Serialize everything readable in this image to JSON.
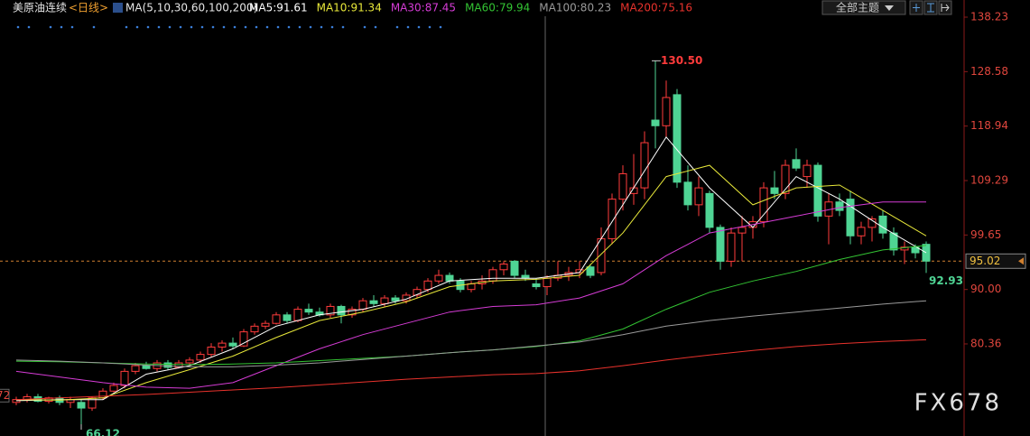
{
  "chart_data": {
    "type": "candlestick",
    "title": "美原油连续",
    "period": "<日线>",
    "indicator": "MA(5,10,30,60,100,200)",
    "theme_button": "全部主题",
    "watermark": "FX678",
    "ylim": [
      64.05,
      141.27
    ],
    "yticks": [
      138.23,
      128.58,
      118.94,
      109.29,
      99.65,
      {
        "value": 90,
        "label": "90.00"
      },
      80.36
    ],
    "up_color": "#ff3b3b",
    "down_color": "#4fd494",
    "open": [
      70,
      70.5,
      71,
      70.2,
      70.8,
      70,
      70,
      69,
      70.8,
      72,
      73,
      75.5,
      76.5,
      76,
      77,
      76.2,
      77,
      77.5,
      78.5,
      79.8,
      80.5,
      80,
      82.5,
      83.5,
      84,
      85.5,
      84.5,
      86.5,
      86,
      85.5,
      87,
      85.5,
      86.5,
      88,
      87.5,
      88.5,
      88,
      89,
      90,
      91.5,
      92.5,
      91.5,
      90,
      91,
      91.5,
      93.5,
      95,
      92.5,
      91,
      90.5,
      92,
      92.5,
      93,
      94,
      93,
      99,
      106,
      107,
      108,
      120,
      119,
      124.5,
      109,
      105,
      107,
      101,
      95,
      100,
      101,
      102,
      108,
      107,
      113,
      110,
      112,
      103,
      105.5,
      106,
      99.5,
      101,
      103,
      100,
      97,
      97.5,
      98
    ],
    "high": [
      71,
      71.5,
      71.5,
      71,
      71.2,
      71,
      70.5,
      71,
      72.5,
      73.5,
      76,
      77,
      77.2,
      77.5,
      77.5,
      77.5,
      78,
      79,
      80.5,
      81,
      81.5,
      83,
      84,
      84.5,
      86,
      86,
      87,
      87.5,
      86.8,
      87.5,
      87.3,
      87,
      88.5,
      89,
      89,
      89,
      89.5,
      90.5,
      92,
      93.5,
      93,
      92,
      91.5,
      92.5,
      94,
      95,
      95.2,
      93.5,
      92,
      92.5,
      95,
      94,
      95,
      94.5,
      101,
      107,
      112,
      114,
      118,
      130.5,
      127,
      125.5,
      112,
      110,
      107.5,
      101.5,
      101,
      103,
      103,
      109,
      111,
      113,
      115,
      113,
      112.5,
      107,
      107,
      107.5,
      102,
      103,
      104,
      101,
      98.5,
      98,
      98.5
    ],
    "low": [
      69.5,
      70,
      70,
      69.8,
      69.5,
      69,
      66.12,
      68.5,
      70.5,
      71.8,
      72.5,
      75,
      75.8,
      75.5,
      75.8,
      76,
      76.5,
      77,
      78,
      79,
      79.5,
      79.8,
      82,
      83,
      83.8,
      84,
      84.2,
      85.5,
      85.2,
      85,
      84,
      85,
      86,
      87,
      87,
      87.5,
      87.5,
      88.5,
      89.5,
      91,
      91,
      89.5,
      89.5,
      90,
      91,
      92.5,
      92,
      91.5,
      90,
      89,
      91.5,
      91.5,
      92,
      92,
      92.5,
      98,
      104,
      105,
      106,
      115,
      117,
      108,
      104,
      103,
      100,
      93.5,
      94,
      95,
      99,
      101,
      106,
      106,
      111,
      108,
      102,
      98,
      103,
      98,
      98,
      98.5,
      99,
      96,
      94.5,
      95.5,
      92.93
    ],
    "close": [
      70.5,
      71,
      70.2,
      70.8,
      70,
      70.5,
      69,
      70.8,
      72,
      73,
      75.5,
      76.5,
      76,
      77,
      76.2,
      77,
      77.5,
      78.5,
      79.8,
      80.5,
      80,
      82.5,
      83.5,
      84,
      85.5,
      84.5,
      86.5,
      86,
      85.5,
      87,
      85.5,
      86.5,
      88,
      87.5,
      88.5,
      88,
      89,
      90,
      91.5,
      92.5,
      91.5,
      90,
      91,
      91.5,
      93.5,
      94.5,
      92.5,
      92,
      90.5,
      92,
      92.5,
      93,
      93.5,
      92.5,
      99,
      106,
      110.5,
      108,
      116,
      119,
      124,
      109,
      105,
      108,
      101,
      95,
      100,
      101,
      102,
      108,
      107,
      112,
      111.5,
      112,
      103,
      105.5,
      104,
      99.5,
      101,
      102.5,
      100,
      97,
      97.5,
      96.5,
      95.02
    ],
    "series": [
      {
        "name": "MA5:91.61",
        "color": "#ffffff",
        "x": [
          0,
          4,
          8,
          12,
          16,
          20,
          24,
          28,
          32,
          36,
          40,
          44,
          48,
          52,
          56,
          60,
          64,
          68,
          72,
          76,
          80,
          84
        ],
        "values": [
          70.3,
          70.5,
          70.5,
          75,
          76.5,
          79.5,
          83.5,
          85.5,
          86.5,
          88.3,
          91.5,
          92,
          92,
          93,
          105,
          117,
          108,
          101,
          110,
          106,
          101,
          96.5
        ]
      },
      {
        "name": "MA10:91.34",
        "color": "#e8e83a",
        "x": [
          0,
          4,
          8,
          12,
          16,
          20,
          24,
          28,
          32,
          36,
          40,
          44,
          48,
          52,
          56,
          60,
          64,
          68,
          72,
          76,
          80,
          84
        ],
        "values": [
          70.5,
          70.4,
          70.8,
          73.5,
          75.8,
          78.2,
          81.5,
          84.5,
          86,
          87.8,
          90.5,
          91.5,
          91.8,
          92.5,
          100,
          110,
          112,
          105,
          108,
          108.5,
          104,
          99.5
        ]
      },
      {
        "name": "MA30:87.45",
        "color": "#d63cd6",
        "x": [
          0,
          4,
          8,
          12,
          16,
          20,
          24,
          28,
          32,
          36,
          40,
          44,
          48,
          52,
          56,
          60,
          64,
          68,
          72,
          76,
          80,
          84
        ],
        "values": [
          75.5,
          74.5,
          73.5,
          72.7,
          72.5,
          73.5,
          76.5,
          79.5,
          82,
          84,
          86,
          87,
          87.3,
          88.5,
          91,
          96,
          100,
          101.5,
          103,
          104.5,
          105.5,
          105.5
        ]
      },
      {
        "name": "MA60:79.94",
        "color": "#33c433",
        "x": [
          0,
          4,
          8,
          12,
          16,
          20,
          24,
          28,
          32,
          36,
          40,
          44,
          48,
          52,
          56,
          60,
          64,
          68,
          72,
          76,
          80,
          84
        ],
        "values": [
          77.3,
          77.2,
          77,
          76.8,
          76.7,
          76.8,
          77,
          77.4,
          77.8,
          78.2,
          78.8,
          79.3,
          79.9,
          80.9,
          83,
          86.5,
          89.5,
          91.5,
          93.2,
          95.3,
          97,
          97.8
        ]
      },
      {
        "name": "MA100:80.23",
        "color": "#9a9a9a",
        "x": [
          0,
          4,
          8,
          12,
          16,
          20,
          24,
          28,
          32,
          36,
          40,
          44,
          48,
          52,
          56,
          60,
          64,
          68,
          72,
          76,
          80,
          84
        ],
        "values": [
          77.5,
          77.3,
          77,
          76.6,
          76.3,
          76.3,
          76.6,
          77,
          77.6,
          78.2,
          78.8,
          79.3,
          80,
          80.7,
          82,
          83.5,
          84.5,
          85.3,
          86,
          86.7,
          87.4,
          88
        ]
      },
      {
        "name": "MA200:75.16",
        "color": "#e8322c",
        "x": [
          0,
          4,
          8,
          12,
          16,
          20,
          24,
          28,
          32,
          36,
          40,
          44,
          48,
          52,
          56,
          60,
          64,
          68,
          72,
          76,
          80,
          84
        ],
        "values": [
          70.5,
          70.8,
          71.1,
          71.4,
          71.8,
          72.2,
          72.6,
          73.1,
          73.6,
          74.1,
          74.5,
          74.9,
          75.1,
          75.6,
          76.5,
          77.5,
          78.4,
          79.2,
          79.9,
          80.4,
          80.8,
          81.1
        ]
      }
    ],
    "high_label": "130.50",
    "low_label": "66.12",
    "last_low_label": "92.93",
    "last_price": {
      "value": 95.02,
      "label": "95.02"
    },
    "left_edge_label": "72"
  }
}
